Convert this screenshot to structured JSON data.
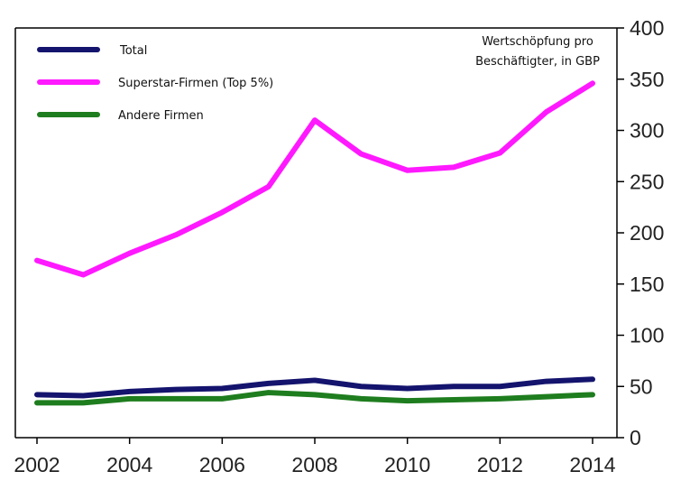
{
  "chart_data": {
    "type": "line",
    "x": [
      2002,
      2003,
      2004,
      2005,
      2006,
      2007,
      2008,
      2009,
      2010,
      2011,
      2012,
      2013,
      2014
    ],
    "series": [
      {
        "name": "Total",
        "color": "#14146e",
        "values": [
          42,
          41,
          45,
          47,
          48,
          53,
          56,
          50,
          48,
          50,
          50,
          55,
          57
        ]
      },
      {
        "name": "Superstar-Firmen (Top 5%)",
        "color": "#ff19ff",
        "values": [
          173,
          159,
          180,
          198,
          220,
          245,
          310,
          277,
          261,
          264,
          278,
          318,
          346
        ]
      },
      {
        "name": "Andere Firmen",
        "color": "#1e7d1e",
        "values": [
          34,
          34,
          38,
          38,
          38,
          44,
          42,
          38,
          36,
          37,
          38,
          40,
          42
        ]
      }
    ],
    "ylabel": "Wertschöpfung pro Beschäftigter, in GBP",
    "ylabel_lines": [
      "Wertschöpfung pro",
      "Beschäftigter, in GBP"
    ],
    "ylim": [
      0,
      400
    ],
    "yticks": [
      0,
      50,
      100,
      150,
      200,
      250,
      300,
      350,
      400
    ],
    "xlim": [
      2002,
      2014
    ],
    "xticks": [
      2002,
      2004,
      2006,
      2008,
      2010,
      2012,
      2014
    ],
    "y_axis_position": "right",
    "grid": false,
    "legend": "top-left"
  }
}
